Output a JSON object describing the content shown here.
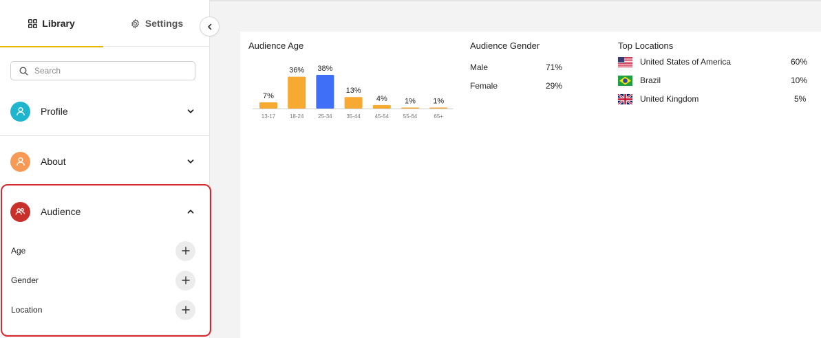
{
  "tabs": {
    "library": "Library",
    "settings": "Settings"
  },
  "search": {
    "placeholder": "Search"
  },
  "sections": {
    "profile": {
      "label": "Profile",
      "color": "#1fb5cf"
    },
    "about": {
      "label": "About",
      "color": "#f79a55"
    },
    "audience": {
      "label": "Audience",
      "color": "#c9302c",
      "items": [
        "Age",
        "Gender",
        "Location"
      ]
    }
  },
  "audience_age": {
    "title": "Audience Age",
    "chart_data": {
      "type": "bar",
      "categories": [
        "13-17",
        "18-24",
        "25-34",
        "35-44",
        "45-54",
        "55-64",
        "65+"
      ],
      "values": [
        7,
        36,
        38,
        13,
        4,
        1,
        1
      ],
      "data_labels": [
        "7%",
        "36%",
        "38%",
        "13%",
        "4%",
        "1%",
        "1%"
      ],
      "highlight_index": 2,
      "bar_color": "#f8a932",
      "highlight_color": "#3f6ef7",
      "ylim": [
        0,
        38
      ]
    }
  },
  "audience_gender": {
    "title": "Audience Gender",
    "rows": [
      {
        "label": "Male",
        "value": "71%"
      },
      {
        "label": "Female",
        "value": "29%"
      }
    ]
  },
  "top_locations": {
    "title": "Top Locations",
    "rows": [
      {
        "flag": "us-flag-icon",
        "country": "United States of America",
        "value": "60%"
      },
      {
        "flag": "br-flag-icon",
        "country": "Brazil",
        "value": "10%"
      },
      {
        "flag": "uk-flag-icon",
        "country": "United Kingdom",
        "value": "5%"
      }
    ]
  }
}
